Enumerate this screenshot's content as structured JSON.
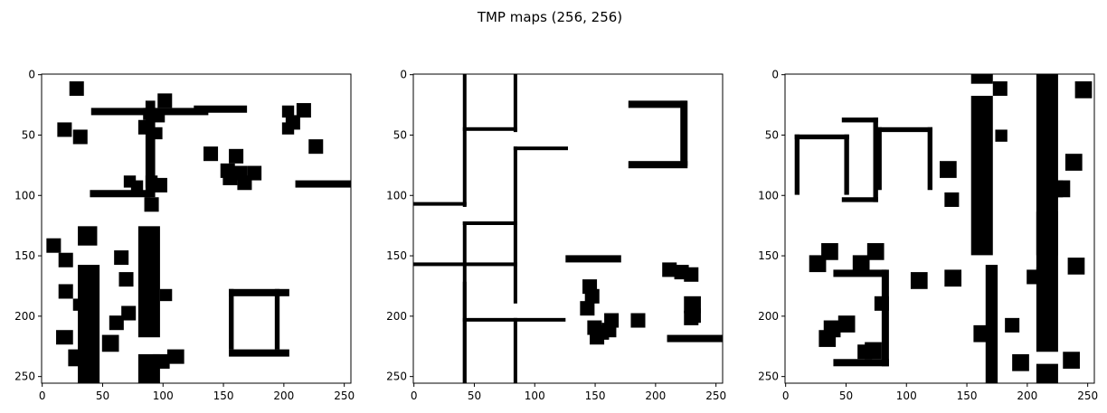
{
  "figure": {
    "suptitle": "TMP maps (256, 256)"
  },
  "chart_data": [
    {
      "type": "heatmap",
      "description": "binary occupancy map 1 (black = obstacle)",
      "shape": [
        256,
        256
      ],
      "xlim": [
        0,
        256
      ],
      "ylim": [
        256,
        0
      ],
      "xticks": [
        0,
        50,
        100,
        150,
        200,
        250
      ],
      "yticks": [
        0,
        50,
        100,
        150,
        200,
        250
      ],
      "colors": {
        "obstacle": "#000000",
        "free": "#ffffff"
      },
      "obstacles": [
        [
          41,
          28,
          97,
          6
        ],
        [
          86,
          22,
          8,
          80
        ],
        [
          126,
          26,
          44,
          6
        ],
        [
          40,
          96,
          50,
          6
        ],
        [
          155,
          178,
          4,
          50
        ],
        [
          155,
          178,
          50,
          6
        ],
        [
          155,
          228,
          50,
          6
        ],
        [
          193,
          178,
          4,
          50
        ],
        [
          210,
          88,
          46,
          6
        ],
        [
          23,
          6,
          12,
          12
        ],
        [
          13,
          40,
          12,
          12
        ],
        [
          26,
          46,
          12,
          12
        ],
        [
          96,
          16,
          12,
          12
        ],
        [
          84,
          28,
          10,
          10
        ],
        [
          92,
          30,
          10,
          10
        ],
        [
          80,
          38,
          12,
          12
        ],
        [
          90,
          44,
          10,
          10
        ],
        [
          199,
          26,
          10,
          10
        ],
        [
          211,
          24,
          12,
          12
        ],
        [
          202,
          34,
          12,
          12
        ],
        [
          199,
          40,
          10,
          10
        ],
        [
          221,
          54,
          12,
          12
        ],
        [
          134,
          60,
          12,
          12
        ],
        [
          155,
          62,
          12,
          12
        ],
        [
          148,
          74,
          12,
          12
        ],
        [
          158,
          76,
          12,
          12
        ],
        [
          170,
          76,
          12,
          12
        ],
        [
          162,
          84,
          12,
          12
        ],
        [
          150,
          80,
          12,
          12
        ],
        [
          68,
          84,
          10,
          10
        ],
        [
          74,
          88,
          10,
          10
        ],
        [
          86,
          84,
          10,
          10
        ],
        [
          92,
          86,
          12,
          12
        ],
        [
          85,
          102,
          12,
          12
        ],
        [
          4,
          136,
          12,
          12
        ],
        [
          30,
          126,
          16,
          16
        ],
        [
          14,
          148,
          12,
          12
        ],
        [
          60,
          146,
          12,
          12
        ],
        [
          64,
          164,
          12,
          12
        ],
        [
          14,
          174,
          12,
          12
        ],
        [
          98,
          178,
          10,
          10
        ],
        [
          26,
          186,
          10,
          10
        ],
        [
          66,
          192,
          12,
          12
        ],
        [
          56,
          200,
          12,
          12
        ],
        [
          12,
          212,
          14,
          12
        ],
        [
          50,
          216,
          14,
          14
        ],
        [
          22,
          228,
          14,
          14
        ],
        [
          92,
          232,
          14,
          12
        ],
        [
          104,
          228,
          14,
          12
        ],
        [
          30,
          158,
          18,
          98
        ],
        [
          80,
          126,
          18,
          92
        ],
        [
          80,
          232,
          18,
          24
        ]
      ]
    },
    {
      "type": "heatmap",
      "description": "binary occupancy map 2 (black = obstacle)",
      "shape": [
        256,
        256
      ],
      "xlim": [
        0,
        256
      ],
      "ylim": [
        256,
        0
      ],
      "xticks": [
        0,
        50,
        100,
        150,
        200,
        250
      ],
      "yticks": [
        0,
        50,
        100,
        150,
        200,
        250
      ],
      "colors": {
        "obstacle": "#000000",
        "free": "#ffffff"
      },
      "obstacles": [
        [
          41,
          0,
          3,
          110
        ],
        [
          83,
          0,
          3,
          48
        ],
        [
          41,
          44,
          45,
          3
        ],
        [
          83,
          60,
          3,
          130
        ],
        [
          83,
          60,
          45,
          3
        ],
        [
          0,
          106,
          44,
          3
        ],
        [
          41,
          122,
          45,
          3
        ],
        [
          41,
          122,
          3,
          134
        ],
        [
          0,
          156,
          86,
          3
        ],
        [
          41,
          172,
          3,
          84
        ],
        [
          41,
          202,
          85,
          3
        ],
        [
          83,
          202,
          3,
          54
        ],
        [
          178,
          22,
          48,
          6
        ],
        [
          221,
          22,
          6,
          54
        ],
        [
          178,
          72,
          49,
          6
        ],
        [
          126,
          150,
          46,
          6
        ],
        [
          210,
          216,
          46,
          6
        ],
        [
          140,
          170,
          12,
          12
        ],
        [
          142,
          178,
          12,
          12
        ],
        [
          138,
          188,
          12,
          12
        ],
        [
          144,
          204,
          12,
          12
        ],
        [
          150,
          208,
          12,
          12
        ],
        [
          158,
          198,
          12,
          12
        ],
        [
          156,
          206,
          12,
          12
        ],
        [
          146,
          212,
          12,
          12
        ],
        [
          180,
          198,
          12,
          12
        ],
        [
          206,
          156,
          12,
          12
        ],
        [
          216,
          158,
          12,
          12
        ],
        [
          224,
          160,
          12,
          12
        ],
        [
          224,
          184,
          14,
          14
        ],
        [
          226,
          194,
          12,
          12
        ],
        [
          224,
          196,
          12,
          12
        ]
      ]
    },
    {
      "type": "heatmap",
      "description": "binary occupancy map 3 (black = obstacle)",
      "shape": [
        256,
        256
      ],
      "xlim": [
        0,
        256
      ],
      "ylim": [
        256,
        0
      ],
      "xticks": [
        0,
        50,
        100,
        150,
        200,
        250
      ],
      "yticks": [
        0,
        50,
        100,
        150,
        200,
        250
      ],
      "colors": {
        "obstacle": "#000000",
        "free": "#ffffff"
      },
      "obstacles": [
        [
          8,
          50,
          4,
          50
        ],
        [
          8,
          50,
          45,
          4
        ],
        [
          49,
          50,
          4,
          50
        ],
        [
          47,
          36,
          30,
          4
        ],
        [
          47,
          102,
          30,
          4
        ],
        [
          73,
          36,
          4,
          70
        ],
        [
          76,
          44,
          46,
          4
        ],
        [
          76,
          44,
          4,
          52
        ],
        [
          118,
          44,
          4,
          52
        ],
        [
          154,
          0,
          18,
          8
        ],
        [
          154,
          18,
          18,
          132
        ],
        [
          172,
          6,
          12,
          12
        ],
        [
          174,
          46,
          10,
          10
        ],
        [
          208,
          0,
          18,
          150
        ],
        [
          216,
          88,
          14,
          14
        ],
        [
          224,
          88,
          12,
          14
        ],
        [
          208,
          114,
          18,
          116
        ],
        [
          208,
          240,
          18,
          16
        ],
        [
          232,
          66,
          14,
          14
        ],
        [
          240,
          6,
          14,
          14
        ],
        [
          128,
          72,
          14,
          14
        ],
        [
          132,
          98,
          12,
          12
        ],
        [
          30,
          140,
          14,
          14
        ],
        [
          20,
          150,
          14,
          14
        ],
        [
          68,
          140,
          14,
          14
        ],
        [
          56,
          150,
          14,
          14
        ],
        [
          40,
          162,
          44,
          6
        ],
        [
          80,
          162,
          6,
          80
        ],
        [
          40,
          236,
          46,
          6
        ],
        [
          74,
          184,
          12,
          12
        ],
        [
          104,
          164,
          14,
          14
        ],
        [
          132,
          162,
          14,
          14
        ],
        [
          166,
          158,
          10,
          100
        ],
        [
          156,
          208,
          14,
          14
        ],
        [
          182,
          202,
          12,
          12
        ],
        [
          188,
          232,
          14,
          14
        ],
        [
          200,
          162,
          12,
          12
        ],
        [
          208,
          160,
          12,
          14
        ],
        [
          234,
          152,
          14,
          14
        ],
        [
          230,
          230,
          14,
          14
        ],
        [
          44,
          200,
          14,
          14
        ],
        [
          32,
          204,
          14,
          14
        ],
        [
          28,
          212,
          14,
          14
        ],
        [
          60,
          224,
          12,
          12
        ],
        [
          66,
          222,
          14,
          14
        ]
      ]
    }
  ]
}
